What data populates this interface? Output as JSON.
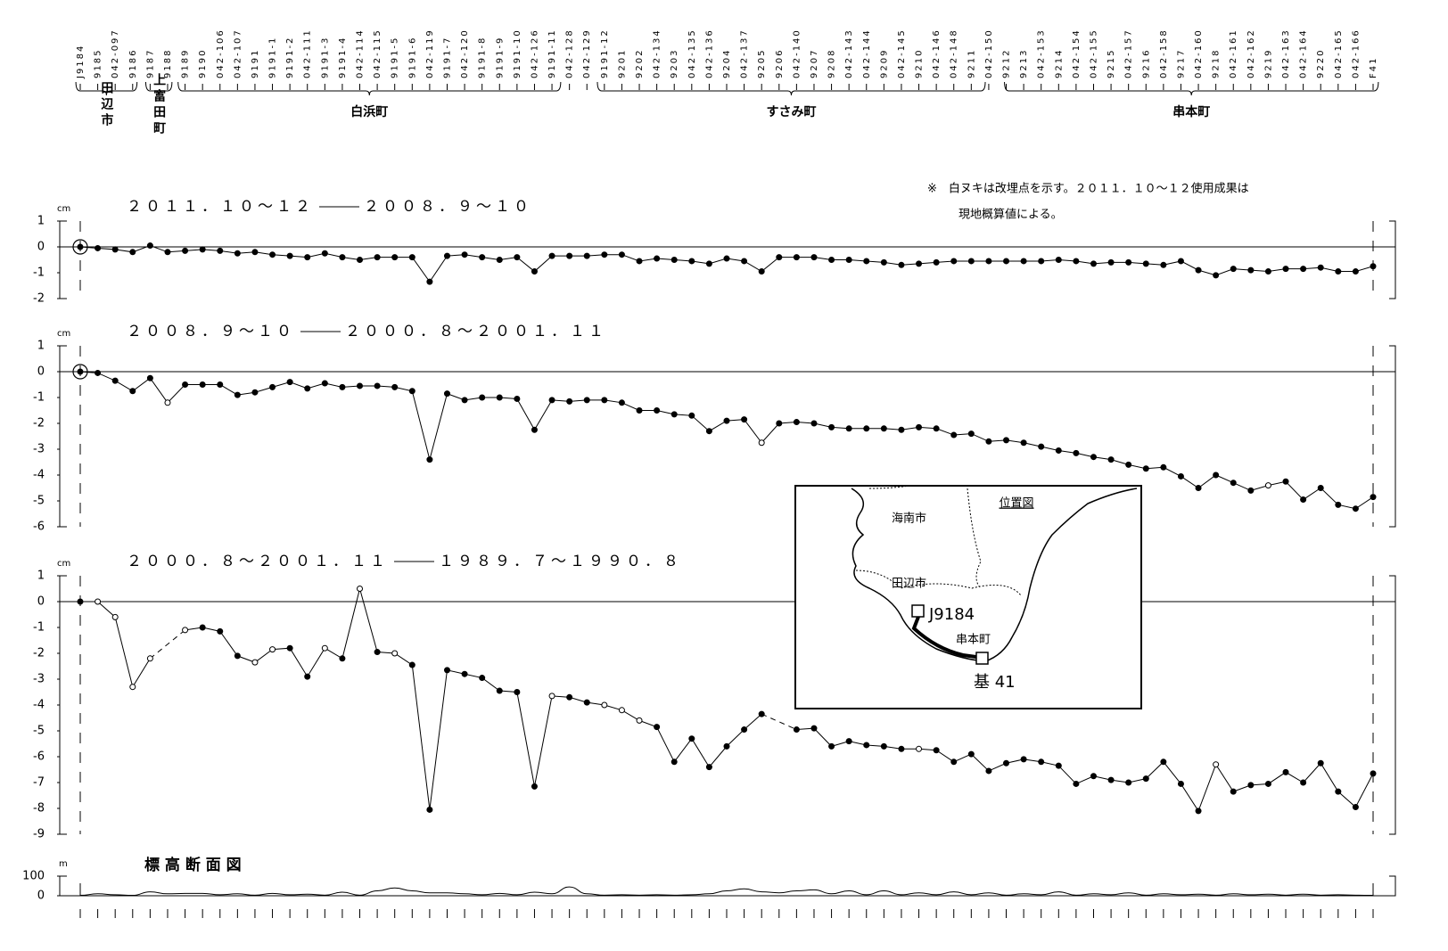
{
  "stations": [
    "J9184",
    "9185",
    "042-097",
    "9186",
    "9187",
    "9188",
    "9189",
    "9190",
    "042-106",
    "042-107",
    "9191",
    "9191-1",
    "9191-2",
    "042-111",
    "9191-3",
    "9191-4",
    "042-114",
    "042-115",
    "9191-5",
    "9191-6",
    "042-119",
    "9191-7",
    "042-120",
    "9191-8",
    "9191-9",
    "9191-10",
    "042-126",
    "9191-11",
    "042-128",
    "042-129",
    "9191-12",
    "9201",
    "9202",
    "042-134",
    "9203",
    "042-135",
    "042-136",
    "9204",
    "042-137",
    "9205",
    "9206",
    "042-140",
    "9207",
    "9208",
    "042-143",
    "042-144",
    "9209",
    "042-145",
    "9210",
    "042-146",
    "042-148",
    "9211",
    "042-150",
    "9212",
    "9213",
    "042-153",
    "9214",
    "042-154",
    "042-155",
    "9215",
    "042-157",
    "9216",
    "042-158",
    "9217",
    "042-160",
    "9218",
    "042-161",
    "042-162",
    "9219",
    "042-163",
    "042-164",
    "9220",
    "042-165",
    "042-166",
    "F41"
  ],
  "regions": [
    "田辺市",
    "上富田町",
    "白浜町",
    "すさみ町",
    "串本町"
  ],
  "note": [
    "※　白ヌキは改埋点を示す。２０１１．１０～１２使用成果は",
    "現地概算値による。"
  ],
  "inset": {
    "title": "位置図",
    "places": [
      "海南市",
      "田辺市",
      "串本町"
    ],
    "start": "J9184",
    "end": "基 41"
  },
  "chart_data": [
    {
      "type": "line",
      "period_new": "２０１１．１０～１２",
      "period_old": "２００８．９～１０",
      "unit": "cm",
      "ylim": [
        -2,
        1
      ],
      "yticks": [
        1,
        0,
        -1,
        -2
      ],
      "origin_ring": true,
      "hollow": [],
      "values": [
        0,
        -0.05,
        -0.1,
        -0.2,
        0.05,
        -0.2,
        -0.15,
        -0.1,
        -0.15,
        -0.25,
        -0.2,
        -0.3,
        -0.35,
        -0.4,
        -0.25,
        -0.4,
        -0.5,
        -0.4,
        -0.4,
        -0.4,
        -1.35,
        -0.35,
        -0.3,
        -0.4,
        -0.5,
        -0.4,
        -0.95,
        -0.35,
        -0.35,
        -0.35,
        -0.3,
        -0.3,
        -0.55,
        -0.45,
        -0.5,
        -0.55,
        -0.65,
        -0.45,
        -0.55,
        -0.95,
        -0.4,
        -0.4,
        -0.4,
        -0.5,
        -0.5,
        -0.55,
        -0.6,
        -0.7,
        -0.65,
        -0.6,
        -0.55,
        -0.55,
        -0.55,
        -0.55,
        -0.55,
        -0.55,
        -0.5,
        -0.55,
        -0.65,
        -0.6,
        -0.6,
        -0.65,
        -0.7,
        -0.55,
        -0.9,
        -1.1,
        -0.85,
        -0.9,
        -0.95,
        -0.85,
        -0.85,
        -0.8,
        -0.95,
        -0.95,
        -0.75
      ]
    },
    {
      "type": "line",
      "period_new": "２００８．９～１０",
      "period_old": "２０００．８～２００１．１１",
      "unit": "cm",
      "ylim": [
        -6,
        1
      ],
      "yticks": [
        1,
        0,
        -1,
        -2,
        -3,
        -4,
        -5,
        -6
      ],
      "origin_ring": true,
      "hollow": [
        5,
        39,
        68
      ],
      "values": [
        0,
        -0.05,
        -0.35,
        -0.75,
        -0.25,
        -1.2,
        -0.5,
        -0.5,
        -0.5,
        -0.9,
        -0.8,
        -0.6,
        -0.4,
        -0.65,
        -0.45,
        -0.6,
        -0.55,
        -0.55,
        -0.6,
        -0.75,
        -3.4,
        -0.85,
        -1.1,
        -1.0,
        -1.0,
        -1.05,
        -2.25,
        -1.1,
        -1.15,
        -1.1,
        -1.1,
        -1.2,
        -1.5,
        -1.5,
        -1.65,
        -1.7,
        -2.3,
        -1.9,
        -1.85,
        -2.75,
        -2.0,
        -1.95,
        -2.0,
        -2.15,
        -2.2,
        -2.2,
        -2.2,
        -2.25,
        -2.15,
        -2.2,
        -2.45,
        -2.4,
        -2.7,
        -2.65,
        -2.75,
        -2.9,
        -3.05,
        -3.15,
        -3.3,
        -3.4,
        -3.6,
        -3.75,
        -3.7,
        -4.05,
        -4.5,
        -4.0,
        -4.3,
        -4.6,
        -4.4,
        -4.25,
        -4.95,
        -4.5,
        -5.15,
        -5.3,
        -4.85
      ]
    },
    {
      "type": "line",
      "period_new": "２０００．８～２００１．１１",
      "period_old": "１９８９．７～１９９０．８",
      "unit": "cm",
      "ylim": [
        -9,
        1
      ],
      "yticks": [
        1,
        0,
        -1,
        -2,
        -3,
        -4,
        -5,
        -6,
        -7,
        -8,
        -9
      ],
      "origin_ring": false,
      "hollow": [
        1,
        2,
        3,
        4,
        6,
        10,
        11,
        14,
        16,
        18,
        27,
        30,
        31,
        32,
        48,
        65
      ],
      "values": [
        0,
        0,
        -0.6,
        -3.3,
        -2.2,
        null,
        -1.1,
        -1.0,
        -1.15,
        -2.1,
        -2.35,
        -1.85,
        -1.8,
        -2.9,
        -1.8,
        -2.2,
        0.5,
        -1.95,
        -2.0,
        -2.45,
        -8.05,
        -2.65,
        -2.8,
        -2.95,
        -3.45,
        -3.5,
        -7.15,
        -3.65,
        -3.7,
        -3.9,
        -4.0,
        -4.2,
        -4.6,
        -4.85,
        -6.2,
        -5.3,
        -6.4,
        -5.6,
        -4.95,
        -4.35,
        null,
        -4.95,
        -4.9,
        -5.6,
        -5.4,
        -5.55,
        -5.6,
        -5.7,
        -5.7,
        -5.75,
        -6.2,
        -5.9,
        -6.55,
        -6.25,
        -6.1,
        -6.2,
        -6.35,
        -7.05,
        -6.75,
        -6.9,
        -7.0,
        -6.85,
        -6.2,
        -7.05,
        -8.1,
        -6.3,
        -7.35,
        -7.1,
        -7.05,
        -6.6,
        -7.0,
        -6.25,
        -7.35,
        -7.95,
        -6.65
      ]
    },
    {
      "type": "profile",
      "title": "標 高 断 面 図",
      "unit": "m",
      "ylim": [
        0,
        100
      ],
      "yticks": [
        100,
        0
      ],
      "values": [
        2,
        10,
        5,
        2,
        20,
        10,
        12,
        12,
        5,
        10,
        3,
        12,
        5,
        8,
        3,
        18,
        3,
        25,
        40,
        25,
        15,
        15,
        10,
        5,
        12,
        5,
        18,
        10,
        45,
        10,
        3,
        5,
        3,
        5,
        3,
        5,
        10,
        25,
        35,
        20,
        15,
        25,
        30,
        10,
        25,
        5,
        25,
        5,
        15,
        5,
        20,
        5,
        15,
        3,
        10,
        5,
        20,
        3,
        10,
        5,
        15,
        3,
        10,
        5,
        8,
        3,
        10,
        5,
        8,
        3,
        8,
        3,
        5,
        3,
        2
      ]
    }
  ]
}
